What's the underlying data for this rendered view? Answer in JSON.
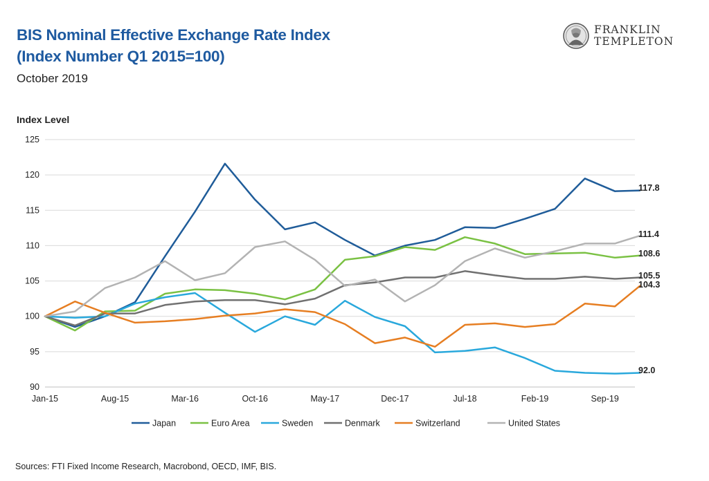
{
  "header": {
    "title_line1": "BIS Nominal Effective Exchange Rate Index",
    "title_line2": "(Index Number Q1 2015=100)",
    "subtitle": "October 2019"
  },
  "logo": {
    "line1": "FRANKLIN",
    "line2": "TEMPLETON"
  },
  "colors": {
    "Japan": "#1f5c99",
    "Euro Area": "#7ac143",
    "Sweden": "#29a8dc",
    "Denmark": "#707070",
    "Switzerland": "#e67e22",
    "United States": "#b3b3b3",
    "grid": "#d9d9d9",
    "title": "#1e5aa0"
  },
  "chart_data": {
    "type": "line",
    "ylabel": "Index Level",
    "ylim": [
      90,
      125
    ],
    "yticks": [
      90,
      95,
      100,
      105,
      110,
      115,
      120,
      125
    ],
    "grid": true,
    "legend_position": "bottom",
    "x_tick_labels": [
      "Jan-15",
      "Aug-15",
      "Mar-16",
      "Oct-16",
      "May-17",
      "Dec-17",
      "Jul-18",
      "Feb-19",
      "Sep-19"
    ],
    "x_tick_every": 7,
    "n_points": 60,
    "end_labels": [
      "117.8",
      "111.4",
      "108.6",
      "105.5",
      "104.3",
      "92.0"
    ],
    "series": [
      {
        "name": "Japan",
        "points": [
          [
            0,
            100
          ],
          [
            3,
            98.5
          ],
          [
            6,
            100
          ],
          [
            9,
            102
          ],
          [
            12,
            108.5
          ],
          [
            15,
            114.8
          ],
          [
            18,
            121.6
          ],
          [
            21,
            116.5
          ],
          [
            24,
            112.3
          ],
          [
            27,
            113.3
          ],
          [
            30,
            110.8
          ],
          [
            33,
            108.6
          ],
          [
            36,
            110
          ],
          [
            39,
            110.8
          ],
          [
            42,
            112.6
          ],
          [
            45,
            112.5
          ],
          [
            48,
            113.8
          ],
          [
            51,
            115.2
          ],
          [
            54,
            119.5
          ],
          [
            57,
            117.7
          ],
          [
            59.5,
            117.8
          ]
        ]
      },
      {
        "name": "Euro Area",
        "points": [
          [
            0,
            100
          ],
          [
            3,
            98
          ],
          [
            6,
            100.7
          ],
          [
            9,
            100.8
          ],
          [
            12,
            103.2
          ],
          [
            15,
            103.8
          ],
          [
            18,
            103.7
          ],
          [
            21,
            103.2
          ],
          [
            24,
            102.4
          ],
          [
            27,
            103.8
          ],
          [
            30,
            108
          ],
          [
            33,
            108.5
          ],
          [
            36,
            109.8
          ],
          [
            39,
            109.4
          ],
          [
            42,
            111.2
          ],
          [
            45,
            110.3
          ],
          [
            48,
            108.8
          ],
          [
            51,
            108.9
          ],
          [
            54,
            109
          ],
          [
            57,
            108.3
          ],
          [
            59.5,
            108.6
          ]
        ]
      },
      {
        "name": "Sweden",
        "points": [
          [
            0,
            100
          ],
          [
            3,
            99.8
          ],
          [
            6,
            100
          ],
          [
            9,
            101.8
          ],
          [
            12,
            102.7
          ],
          [
            15,
            103.3
          ],
          [
            18,
            100.5
          ],
          [
            21,
            97.8
          ],
          [
            24,
            100
          ],
          [
            27,
            98.8
          ],
          [
            30,
            102.2
          ],
          [
            33,
            99.9
          ],
          [
            36,
            98.6
          ],
          [
            39,
            94.9
          ],
          [
            42,
            95.1
          ],
          [
            45,
            95.6
          ],
          [
            48,
            94.1
          ],
          [
            51,
            92.3
          ],
          [
            54,
            92
          ],
          [
            57,
            91.9
          ],
          [
            59.5,
            92
          ]
        ]
      },
      {
        "name": "Denmark",
        "points": [
          [
            0,
            100
          ],
          [
            3,
            98.7
          ],
          [
            6,
            100.4
          ],
          [
            9,
            100.4
          ],
          [
            12,
            101.6
          ],
          [
            15,
            102.1
          ],
          [
            18,
            102.3
          ],
          [
            21,
            102.3
          ],
          [
            24,
            101.7
          ],
          [
            27,
            102.5
          ],
          [
            30,
            104.4
          ],
          [
            33,
            104.8
          ],
          [
            36,
            105.5
          ],
          [
            39,
            105.5
          ],
          [
            42,
            106.4
          ],
          [
            45,
            105.8
          ],
          [
            48,
            105.3
          ],
          [
            51,
            105.3
          ],
          [
            54,
            105.6
          ],
          [
            57,
            105.3
          ],
          [
            59.5,
            105.5
          ]
        ]
      },
      {
        "name": "Switzerland",
        "points": [
          [
            0,
            100
          ],
          [
            3,
            102.1
          ],
          [
            6,
            100.5
          ],
          [
            9,
            99.1
          ],
          [
            12,
            99.3
          ],
          [
            15,
            99.6
          ],
          [
            18,
            100.1
          ],
          [
            21,
            100.4
          ],
          [
            24,
            101
          ],
          [
            27,
            100.6
          ],
          [
            30,
            98.9
          ],
          [
            33,
            96.2
          ],
          [
            36,
            97
          ],
          [
            39,
            95.7
          ],
          [
            42,
            98.8
          ],
          [
            45,
            99
          ],
          [
            48,
            98.5
          ],
          [
            51,
            98.9
          ],
          [
            54,
            101.8
          ],
          [
            57,
            101.4
          ],
          [
            59.5,
            104.3
          ]
        ]
      },
      {
        "name": "United States",
        "points": [
          [
            0,
            100
          ],
          [
            3,
            100.7
          ],
          [
            6,
            104
          ],
          [
            9,
            105.5
          ],
          [
            12,
            107.8
          ],
          [
            15,
            105.1
          ],
          [
            18,
            106.1
          ],
          [
            21,
            109.8
          ],
          [
            24,
            110.6
          ],
          [
            27,
            108
          ],
          [
            30,
            104.3
          ],
          [
            33,
            105.2
          ],
          [
            36,
            102.1
          ],
          [
            39,
            104.4
          ],
          [
            42,
            107.8
          ],
          [
            45,
            109.6
          ],
          [
            48,
            108.3
          ],
          [
            51,
            109.2
          ],
          [
            54,
            110.3
          ],
          [
            57,
            110.3
          ],
          [
            59.5,
            111.4
          ]
        ]
      }
    ]
  },
  "footer": {
    "source": "Sources: FTI Fixed Income Research, Macrobond, OECD, IMF, BIS."
  }
}
